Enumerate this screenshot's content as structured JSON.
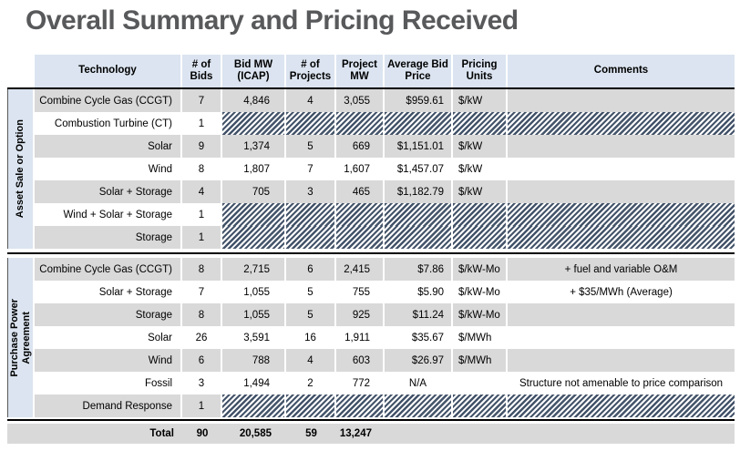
{
  "title": "Overall Summary and Pricing Received",
  "table": {
    "header": {
      "technology": "Technology",
      "bids": "# of\nBids",
      "bid_mw": "Bid MW\n(ICAP)",
      "projects": "# of\nProjects",
      "project_mw": "Project\nMW",
      "avg_price": "Average Bid\nPrice",
      "units": "Pricing\nUnits",
      "comments": "Comments"
    },
    "groups": [
      {
        "label": "Asset Sale or Option",
        "rows": [
          {
            "technology": "Combine Cycle Gas (CCGT)",
            "bids": "7",
            "bid_mw": "4,846",
            "projects": "4",
            "project_mw": "3,055",
            "avg_price": "$959.61",
            "units": "$/kW",
            "comments": "",
            "shade": "gray",
            "hatched": false
          },
          {
            "technology": "Combustion Turbine (CT)",
            "bids": "1",
            "bid_mw": "",
            "projects": "",
            "project_mw": "",
            "avg_price": "",
            "units": "",
            "comments": "",
            "shade": "white",
            "hatched": true
          },
          {
            "technology": "Solar",
            "bids": "9",
            "bid_mw": "1,374",
            "projects": "5",
            "project_mw": "669",
            "avg_price": "$1,151.01",
            "units": "$/kW",
            "comments": "",
            "shade": "gray",
            "hatched": false
          },
          {
            "technology": "Wind",
            "bids": "8",
            "bid_mw": "1,807",
            "projects": "7",
            "project_mw": "1,607",
            "avg_price": "$1,457.07",
            "units": "$/kW",
            "comments": "",
            "shade": "white",
            "hatched": false
          },
          {
            "technology": "Solar + Storage",
            "bids": "4",
            "bid_mw": "705",
            "projects": "3",
            "project_mw": "465",
            "avg_price": "$1,182.79",
            "units": "$/kW",
            "comments": "",
            "shade": "gray",
            "hatched": false
          },
          {
            "technology": "Wind + Solar + Storage",
            "bids": "1",
            "bid_mw": "",
            "projects": "",
            "project_mw": "",
            "avg_price": "",
            "units": "",
            "comments": "",
            "shade": "white",
            "hatched": true
          },
          {
            "technology": "Storage",
            "bids": "1",
            "bid_mw": "",
            "projects": "",
            "project_mw": "",
            "avg_price": "",
            "units": "",
            "comments": "",
            "shade": "gray",
            "hatched": true
          }
        ]
      },
      {
        "label": "Purchase Power\nAgreement",
        "rows": [
          {
            "technology": "Combine Cycle Gas (CCGT)",
            "bids": "8",
            "bid_mw": "2,715",
            "projects": "6",
            "project_mw": "2,415",
            "avg_price": "$7.86",
            "units": "$/kW-Mo",
            "comments": "+ fuel and variable O&M",
            "shade": "gray",
            "hatched": false
          },
          {
            "technology": "Solar + Storage",
            "bids": "7",
            "bid_mw": "1,055",
            "projects": "5",
            "project_mw": "755",
            "avg_price": "$5.90",
            "units": "$/kW-Mo",
            "comments": "+ $35/MWh (Average)",
            "shade": "white",
            "hatched": false
          },
          {
            "technology": "Storage",
            "bids": "8",
            "bid_mw": "1,055",
            "projects": "5",
            "project_mw": "925",
            "avg_price": "$11.24",
            "units": "$/kW-Mo",
            "comments": "",
            "shade": "gray",
            "hatched": false
          },
          {
            "technology": "Solar",
            "bids": "26",
            "bid_mw": "3,591",
            "projects": "16",
            "project_mw": "1,911",
            "avg_price": "$35.67",
            "units": "$/MWh",
            "comments": "",
            "shade": "white",
            "hatched": false
          },
          {
            "technology": "Wind",
            "bids": "6",
            "bid_mw": "788",
            "projects": "4",
            "project_mw": "603",
            "avg_price": "$26.97",
            "units": "$/MWh",
            "comments": "",
            "shade": "gray",
            "hatched": false
          },
          {
            "technology": "Fossil",
            "bids": "3",
            "bid_mw": "1,494",
            "projects": "2",
            "project_mw": "772",
            "avg_price": "N/A",
            "units": "",
            "comments": "Structure not amenable to price comparison",
            "shade": "white",
            "hatched": false
          },
          {
            "technology": "Demand Response",
            "bids": "1",
            "bid_mw": "",
            "projects": "",
            "project_mw": "",
            "avg_price": "",
            "units": "",
            "comments": "",
            "shade": "gray",
            "hatched": true
          }
        ]
      }
    ],
    "total": {
      "label": "Total",
      "bids": "90",
      "bid_mw": "20,585",
      "projects": "59",
      "project_mw": "13,247"
    },
    "colors": {
      "header_bg": "#dbe4f0",
      "group_label_bg": "#dbe4f0",
      "row_gray": "#d9d9d9",
      "row_white": "#ffffff",
      "hatch_stripe": "#44546a",
      "title_color": "#58595b"
    }
  }
}
